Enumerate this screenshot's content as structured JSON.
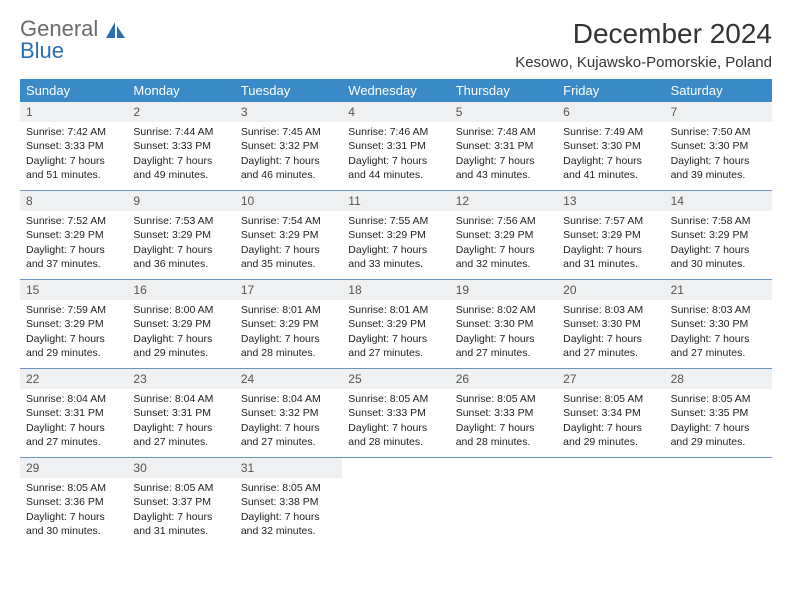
{
  "logo": {
    "text1": "General",
    "text2": "Blue",
    "text_color": "#6b6b6b",
    "accent_color": "#2a6fb0"
  },
  "header": {
    "month_title": "December 2024",
    "location": "Kesowo, Kujawsko-Pomorskie, Poland"
  },
  "colors": {
    "weekday_header_bg": "#3a8ac8",
    "weekday_header_text": "#ffffff",
    "daynum_bg": "#eef0f1",
    "row_border": "#6a95bd",
    "body_text": "#222222"
  },
  "weekdays": [
    "Sunday",
    "Monday",
    "Tuesday",
    "Wednesday",
    "Thursday",
    "Friday",
    "Saturday"
  ],
  "weeks": [
    [
      {
        "n": "1",
        "sunrise": "Sunrise: 7:42 AM",
        "sunset": "Sunset: 3:33 PM",
        "day": "Daylight: 7 hours and 51 minutes."
      },
      {
        "n": "2",
        "sunrise": "Sunrise: 7:44 AM",
        "sunset": "Sunset: 3:33 PM",
        "day": "Daylight: 7 hours and 49 minutes."
      },
      {
        "n": "3",
        "sunrise": "Sunrise: 7:45 AM",
        "sunset": "Sunset: 3:32 PM",
        "day": "Daylight: 7 hours and 46 minutes."
      },
      {
        "n": "4",
        "sunrise": "Sunrise: 7:46 AM",
        "sunset": "Sunset: 3:31 PM",
        "day": "Daylight: 7 hours and 44 minutes."
      },
      {
        "n": "5",
        "sunrise": "Sunrise: 7:48 AM",
        "sunset": "Sunset: 3:31 PM",
        "day": "Daylight: 7 hours and 43 minutes."
      },
      {
        "n": "6",
        "sunrise": "Sunrise: 7:49 AM",
        "sunset": "Sunset: 3:30 PM",
        "day": "Daylight: 7 hours and 41 minutes."
      },
      {
        "n": "7",
        "sunrise": "Sunrise: 7:50 AM",
        "sunset": "Sunset: 3:30 PM",
        "day": "Daylight: 7 hours and 39 minutes."
      }
    ],
    [
      {
        "n": "8",
        "sunrise": "Sunrise: 7:52 AM",
        "sunset": "Sunset: 3:29 PM",
        "day": "Daylight: 7 hours and 37 minutes."
      },
      {
        "n": "9",
        "sunrise": "Sunrise: 7:53 AM",
        "sunset": "Sunset: 3:29 PM",
        "day": "Daylight: 7 hours and 36 minutes."
      },
      {
        "n": "10",
        "sunrise": "Sunrise: 7:54 AM",
        "sunset": "Sunset: 3:29 PM",
        "day": "Daylight: 7 hours and 35 minutes."
      },
      {
        "n": "11",
        "sunrise": "Sunrise: 7:55 AM",
        "sunset": "Sunset: 3:29 PM",
        "day": "Daylight: 7 hours and 33 minutes."
      },
      {
        "n": "12",
        "sunrise": "Sunrise: 7:56 AM",
        "sunset": "Sunset: 3:29 PM",
        "day": "Daylight: 7 hours and 32 minutes."
      },
      {
        "n": "13",
        "sunrise": "Sunrise: 7:57 AM",
        "sunset": "Sunset: 3:29 PM",
        "day": "Daylight: 7 hours and 31 minutes."
      },
      {
        "n": "14",
        "sunrise": "Sunrise: 7:58 AM",
        "sunset": "Sunset: 3:29 PM",
        "day": "Daylight: 7 hours and 30 minutes."
      }
    ],
    [
      {
        "n": "15",
        "sunrise": "Sunrise: 7:59 AM",
        "sunset": "Sunset: 3:29 PM",
        "day": "Daylight: 7 hours and 29 minutes."
      },
      {
        "n": "16",
        "sunrise": "Sunrise: 8:00 AM",
        "sunset": "Sunset: 3:29 PM",
        "day": "Daylight: 7 hours and 29 minutes."
      },
      {
        "n": "17",
        "sunrise": "Sunrise: 8:01 AM",
        "sunset": "Sunset: 3:29 PM",
        "day": "Daylight: 7 hours and 28 minutes."
      },
      {
        "n": "18",
        "sunrise": "Sunrise: 8:01 AM",
        "sunset": "Sunset: 3:29 PM",
        "day": "Daylight: 7 hours and 27 minutes."
      },
      {
        "n": "19",
        "sunrise": "Sunrise: 8:02 AM",
        "sunset": "Sunset: 3:30 PM",
        "day": "Daylight: 7 hours and 27 minutes."
      },
      {
        "n": "20",
        "sunrise": "Sunrise: 8:03 AM",
        "sunset": "Sunset: 3:30 PM",
        "day": "Daylight: 7 hours and 27 minutes."
      },
      {
        "n": "21",
        "sunrise": "Sunrise: 8:03 AM",
        "sunset": "Sunset: 3:30 PM",
        "day": "Daylight: 7 hours and 27 minutes."
      }
    ],
    [
      {
        "n": "22",
        "sunrise": "Sunrise: 8:04 AM",
        "sunset": "Sunset: 3:31 PM",
        "day": "Daylight: 7 hours and 27 minutes."
      },
      {
        "n": "23",
        "sunrise": "Sunrise: 8:04 AM",
        "sunset": "Sunset: 3:31 PM",
        "day": "Daylight: 7 hours and 27 minutes."
      },
      {
        "n": "24",
        "sunrise": "Sunrise: 8:04 AM",
        "sunset": "Sunset: 3:32 PM",
        "day": "Daylight: 7 hours and 27 minutes."
      },
      {
        "n": "25",
        "sunrise": "Sunrise: 8:05 AM",
        "sunset": "Sunset: 3:33 PM",
        "day": "Daylight: 7 hours and 28 minutes."
      },
      {
        "n": "26",
        "sunrise": "Sunrise: 8:05 AM",
        "sunset": "Sunset: 3:33 PM",
        "day": "Daylight: 7 hours and 28 minutes."
      },
      {
        "n": "27",
        "sunrise": "Sunrise: 8:05 AM",
        "sunset": "Sunset: 3:34 PM",
        "day": "Daylight: 7 hours and 29 minutes."
      },
      {
        "n": "28",
        "sunrise": "Sunrise: 8:05 AM",
        "sunset": "Sunset: 3:35 PM",
        "day": "Daylight: 7 hours and 29 minutes."
      }
    ],
    [
      {
        "n": "29",
        "sunrise": "Sunrise: 8:05 AM",
        "sunset": "Sunset: 3:36 PM",
        "day": "Daylight: 7 hours and 30 minutes."
      },
      {
        "n": "30",
        "sunrise": "Sunrise: 8:05 AM",
        "sunset": "Sunset: 3:37 PM",
        "day": "Daylight: 7 hours and 31 minutes."
      },
      {
        "n": "31",
        "sunrise": "Sunrise: 8:05 AM",
        "sunset": "Sunset: 3:38 PM",
        "day": "Daylight: 7 hours and 32 minutes."
      },
      null,
      null,
      null,
      null
    ]
  ]
}
